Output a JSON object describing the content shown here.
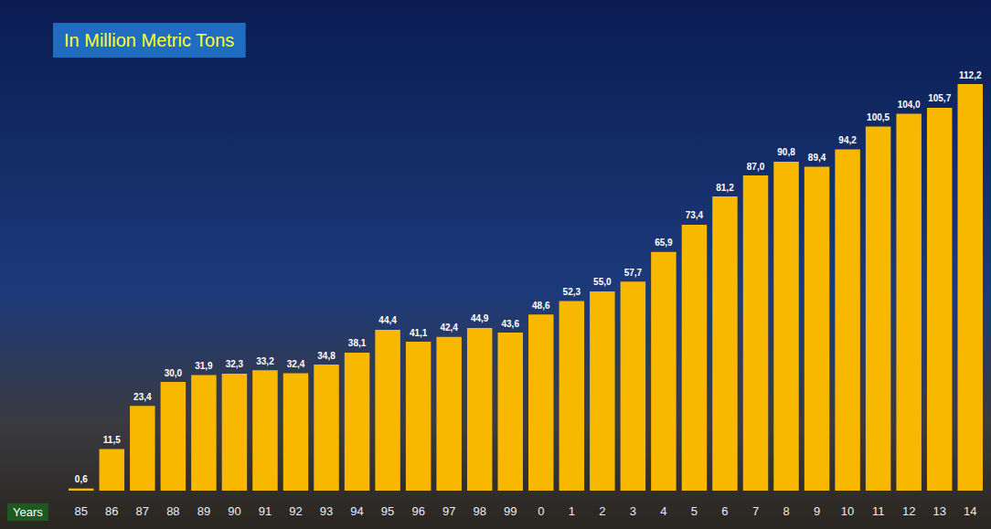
{
  "chart_data": {
    "type": "bar",
    "title": "In Million Metric Tons",
    "x_label": "Years",
    "categories": [
      "85",
      "86",
      "87",
      "88",
      "89",
      "90",
      "91",
      "92",
      "93",
      "94",
      "95",
      "96",
      "97",
      "98",
      "99",
      "0",
      "1",
      "2",
      "3",
      "4",
      "5",
      "6",
      "7",
      "8",
      "9",
      "10",
      "11",
      "12",
      "13",
      "14"
    ],
    "values": [
      0.6,
      11.5,
      23.4,
      30.0,
      31.9,
      32.3,
      33.2,
      32.4,
      34.8,
      38.1,
      44.4,
      41.1,
      42.4,
      44.9,
      43.6,
      48.6,
      52.3,
      55.0,
      57.7,
      65.9,
      73.4,
      81.2,
      87.0,
      90.8,
      89.4,
      94.2,
      100.5,
      104.0,
      105.7,
      112.2
    ],
    "value_labels": [
      "0,6",
      "11,5",
      "23,4",
      "30,0",
      "31,9",
      "32,3",
      "33,2",
      "32,4",
      "34,8",
      "38,1",
      "44,4",
      "41,1",
      "42,4",
      "44,9",
      "43,6",
      "48,6",
      "52,3",
      "55,0",
      "57,7",
      "65,9",
      "73,4",
      "81,2",
      "87,0",
      "90,8",
      "89,4",
      "94,2",
      "100,5",
      "104,0",
      "105,7",
      "112,2"
    ],
    "color": "#f9b800",
    "ylim": [
      0,
      115
    ],
    "grid": false,
    "data_labels": true,
    "tick_labels": "x"
  }
}
